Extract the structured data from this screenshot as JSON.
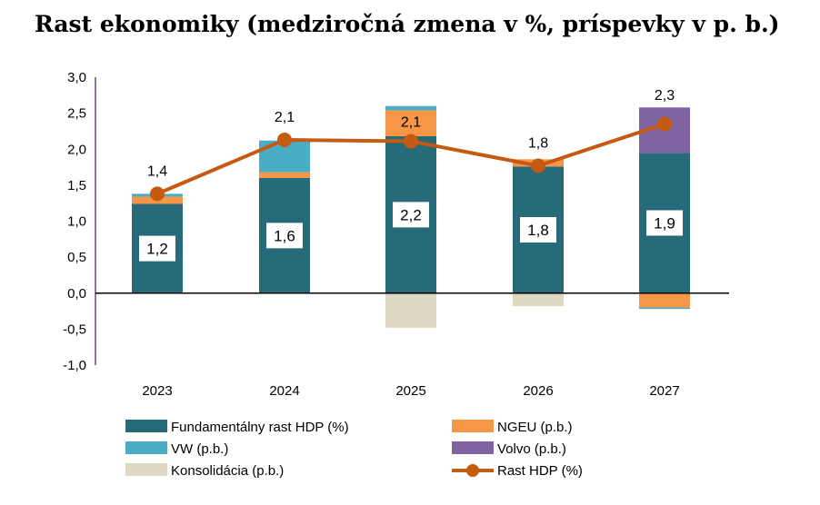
{
  "chart_data": {
    "type": "bar",
    "title": "Rast ekonomiky (medziročná zmena v %, príspevky v p. b.)",
    "categories": [
      "2023",
      "2024",
      "2025",
      "2026",
      "2027"
    ],
    "ylim": [
      -1.0,
      3.0
    ],
    "yticks": [
      "3,0",
      "2,5",
      "2,0",
      "1,5",
      "1,0",
      "0,5",
      "0,0",
      "-0,5",
      "-1,0"
    ],
    "ytick_values": [
      3.0,
      2.5,
      2.0,
      1.5,
      1.0,
      0.5,
      0.0,
      -0.5,
      -1.0
    ],
    "series": [
      {
        "name": "Fundamentálny rast HDP (%)",
        "color": "#276A7A",
        "values": [
          1.24,
          1.6,
          2.18,
          1.76,
          1.95
        ]
      },
      {
        "name": "NGEU (p.b.)",
        "color": "#F79646",
        "values": [
          0.1,
          0.08,
          0.36,
          0.1,
          -0.2
        ]
      },
      {
        "name": "VW (p.b.)",
        "color": "#4BACC6",
        "values": [
          0.04,
          0.44,
          0.06,
          0.0,
          -0.02
        ]
      },
      {
        "name": "Volvo (p.b.)",
        "color": "#8064A2",
        "values": [
          0.0,
          0.0,
          0.0,
          0.0,
          0.63
        ]
      },
      {
        "name": "Konsolidácia (p.b.)",
        "color": "#DDD9C3",
        "values": [
          0.0,
          0.0,
          -0.48,
          -0.18,
          0.0
        ]
      }
    ],
    "line": {
      "name": "Rast HDP (%)",
      "color": "#C55A11",
      "values": [
        1.38,
        2.13,
        2.11,
        1.77,
        2.35
      ]
    },
    "bar_labels": [
      "1,2",
      "1,6",
      "2,2",
      "1,8",
      "1,9"
    ],
    "line_labels": [
      "1,4",
      "2,1",
      "2,1",
      "1,8",
      "2,3"
    ],
    "legend": {
      "placement": "bottom",
      "items": [
        {
          "label": "Fundamentálny rast HDP (%)",
          "kind": "bar",
          "color": "#276A7A"
        },
        {
          "label": "NGEU (p.b.)",
          "kind": "bar",
          "color": "#F79646"
        },
        {
          "label": "VW (p.b.)",
          "kind": "bar",
          "color": "#4BACC6"
        },
        {
          "label": "Volvo (p.b.)",
          "kind": "bar",
          "color": "#8064A2"
        },
        {
          "label": "Konsolidácia (p.b.)",
          "kind": "bar",
          "color": "#DDD9C3"
        },
        {
          "label": "Rast HDP (%)",
          "kind": "line",
          "color": "#C55A11"
        }
      ]
    }
  }
}
